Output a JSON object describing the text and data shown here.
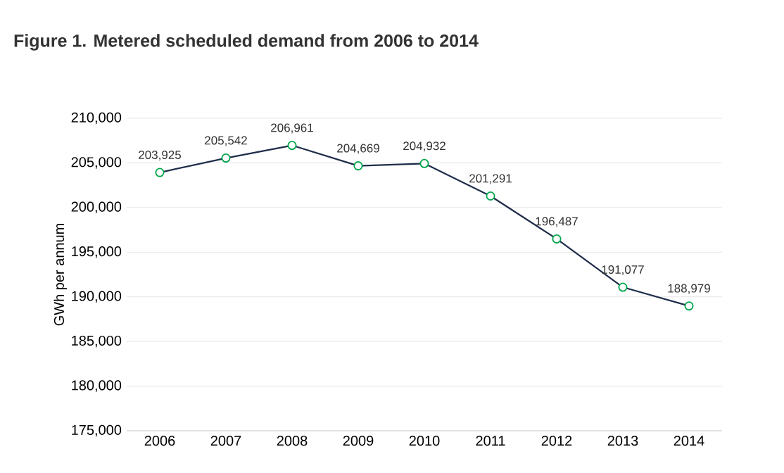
{
  "chart_data": {
    "type": "line",
    "title": "Figure 1. Metered scheduled demand from 2006 to 2014",
    "ylabel": "GWh per annum",
    "categories": [
      "2006",
      "2007",
      "2008",
      "2009",
      "2010",
      "2011",
      "2012",
      "2013",
      "2014"
    ],
    "series": [
      {
        "color": "#1f2d4a",
        "values": [
          203925,
          205542,
          206961,
          204669,
          204932,
          201291,
          196487,
          191077,
          188979
        ],
        "value_labels": [
          "203,925",
          "205,542",
          "206,961",
          "204,669",
          "204,932",
          "201,291",
          "196,487",
          "191,077",
          "188,979"
        ]
      }
    ],
    "ylim": [
      175000,
      210000
    ],
    "yticks": [
      {
        "value": 175000,
        "label": "175,000"
      },
      {
        "value": 180000,
        "label": "180,000"
      },
      {
        "value": 185000,
        "label": "185,000"
      },
      {
        "value": 190000,
        "label": "190,000"
      },
      {
        "value": 195000,
        "label": "195,000"
      },
      {
        "value": 200000,
        "label": "200,000"
      },
      {
        "value": 205000,
        "label": "205,000"
      },
      {
        "value": 210000,
        "label": "210,000"
      }
    ],
    "grid": "y",
    "marker": "circle",
    "line_style": "solid"
  }
}
